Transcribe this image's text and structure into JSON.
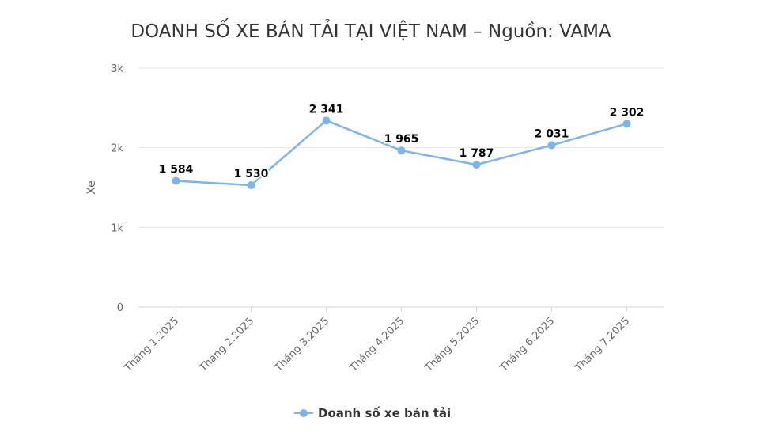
{
  "chart_data": {
    "type": "line",
    "title": "DOANH SỐ XE BÁN TẢI TẠI VIỆT NAM – Nguồn: VAMA",
    "ylabel": "Xe",
    "xlabel": "",
    "categories": [
      "Tháng 1.2025",
      "Tháng 2.2025",
      "Tháng 3.2025",
      "Tháng 4.2025",
      "Tháng 5.2025",
      "Tháng 6.2025",
      "Tháng 7.2025"
    ],
    "series": [
      {
        "name": "Doanh số xe bán tải",
        "values": [
          1584,
          1530,
          2341,
          1965,
          1787,
          2031,
          2302
        ],
        "labels": [
          "1 584",
          "1 530",
          "2 341",
          "1 965",
          "1 787",
          "2 031",
          "2 302"
        ],
        "color": "#7cb5ec"
      }
    ],
    "ylim": [
      0,
      3000
    ],
    "yticks": [
      {
        "value": 0,
        "label": "0"
      },
      {
        "value": 1000,
        "label": "1k"
      },
      {
        "value": 2000,
        "label": "2k"
      },
      {
        "value": 3000,
        "label": "3k"
      }
    ],
    "grid": true,
    "legend": "bottom-center"
  }
}
